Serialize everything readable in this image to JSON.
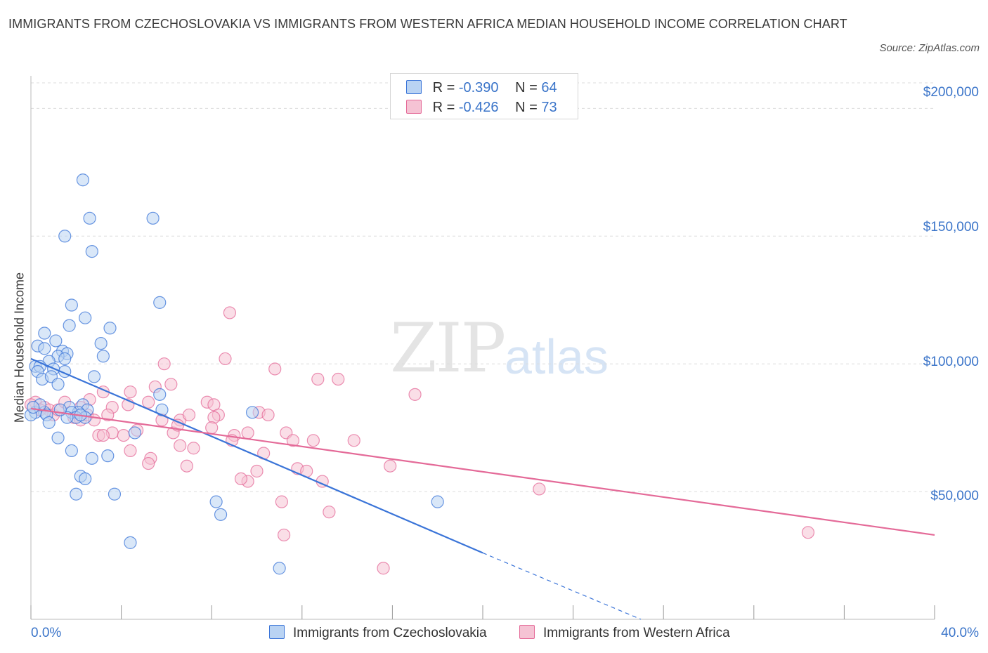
{
  "title": "IMMIGRANTS FROM CZECHOSLOVAKIA VS IMMIGRANTS FROM WESTERN AFRICA MEDIAN HOUSEHOLD INCOME CORRELATION CHART",
  "source": "Source: ZipAtlas.com",
  "watermark": {
    "zip": "ZIP",
    "atlas": "atlas"
  },
  "legend": {
    "rows": [
      {
        "r_label": "R = ",
        "r_value": "-0.390",
        "n_label": "N = ",
        "n_value": "64"
      },
      {
        "r_label": "R = ",
        "r_value": "-0.426",
        "n_label": "N = ",
        "n_value": "73"
      }
    ]
  },
  "colors": {
    "blue": "#3a74d8",
    "blue_fill": "#b9d3f3",
    "pink": "#e46a98",
    "pink_fill": "#f5c3d4",
    "axis_text": "#3a74c9",
    "grid": "#dcdcdc"
  },
  "chart_data": {
    "type": "scatter",
    "title": "IMMIGRANTS FROM CZECHOSLOVAKIA VS IMMIGRANTS FROM WESTERN AFRICA MEDIAN HOUSEHOLD INCOME CORRELATION CHART",
    "xlabel": "",
    "ylabel": "Median Household Income",
    "xlim": [
      0,
      40
    ],
    "ylim": [
      0,
      210000
    ],
    "x_tick_labels": [
      "0.0%",
      "40.0%"
    ],
    "y_ticks": [
      50000,
      100000,
      150000,
      200000
    ],
    "y_tick_labels": [
      "$50,000",
      "$100,000",
      "$150,000",
      "$200,000"
    ],
    "grid": true,
    "legend_position": "top-center",
    "series": [
      {
        "name": "Immigrants from Czechoslovakia",
        "color": "#3a74d8",
        "trend": {
          "x0": 0,
          "y0": 102000,
          "x1": 20,
          "y1": 26000,
          "dashed_to_x": 27,
          "dashed_to_y": 0
        },
        "points": [
          [
            2.3,
            172000
          ],
          [
            2.6,
            157000
          ],
          [
            5.4,
            157000
          ],
          [
            1.5,
            150000
          ],
          [
            2.7,
            144000
          ],
          [
            5.7,
            124000
          ],
          [
            1.8,
            123000
          ],
          [
            2.4,
            118000
          ],
          [
            1.7,
            115000
          ],
          [
            3.5,
            114000
          ],
          [
            0.6,
            112000
          ],
          [
            1.1,
            109000
          ],
          [
            3.1,
            108000
          ],
          [
            0.3,
            107000
          ],
          [
            0.6,
            106000
          ],
          [
            1.4,
            105000
          ],
          [
            1.6,
            104000
          ],
          [
            3.2,
            103000
          ],
          [
            1.2,
            103000
          ],
          [
            1.5,
            102000
          ],
          [
            0.8,
            101000
          ],
          [
            0.2,
            99000
          ],
          [
            0.4,
            99000
          ],
          [
            1.0,
            98000
          ],
          [
            1.5,
            97000
          ],
          [
            0.3,
            97000
          ],
          [
            2.8,
            95000
          ],
          [
            0.5,
            94000
          ],
          [
            0.9,
            95000
          ],
          [
            1.2,
            92000
          ],
          [
            5.7,
            88000
          ],
          [
            2.3,
            84000
          ],
          [
            1.7,
            83000
          ],
          [
            2.5,
            82000
          ],
          [
            5.8,
            82000
          ],
          [
            2.1,
            81000
          ],
          [
            0.6,
            81000
          ],
          [
            1.8,
            81000
          ],
          [
            9.8,
            81000
          ],
          [
            0.2,
            81000
          ],
          [
            2.4,
            79000
          ],
          [
            2.0,
            79000
          ],
          [
            2.2,
            80000
          ],
          [
            1.6,
            79000
          ],
          [
            0.7,
            80000
          ],
          [
            0.0,
            80000
          ],
          [
            0.8,
            77000
          ],
          [
            4.6,
            73000
          ],
          [
            1.2,
            71000
          ],
          [
            1.8,
            66000
          ],
          [
            3.4,
            64000
          ],
          [
            2.7,
            63000
          ],
          [
            2.2,
            56000
          ],
          [
            2.4,
            55000
          ],
          [
            3.7,
            49000
          ],
          [
            2.0,
            49000
          ],
          [
            8.2,
            46000
          ],
          [
            18.0,
            46000
          ],
          [
            8.4,
            41000
          ],
          [
            4.4,
            30000
          ],
          [
            11.0,
            20000
          ],
          [
            1.3,
            82000
          ],
          [
            0.4,
            84000
          ],
          [
            0.1,
            83000
          ]
        ]
      },
      {
        "name": "Immigrants from Western Africa",
        "color": "#e46a98",
        "trend": {
          "x0": 0,
          "y0": 82500,
          "x1": 40,
          "y1": 33000
        },
        "points": [
          [
            0.2,
            85000
          ],
          [
            0.0,
            84000
          ],
          [
            0.6,
            83000
          ],
          [
            0.8,
            82000
          ],
          [
            0.4,
            82000
          ],
          [
            1.0,
            80000
          ],
          [
            1.2,
            82000
          ],
          [
            1.5,
            85000
          ],
          [
            1.9,
            79000
          ],
          [
            2.2,
            78000
          ],
          [
            2.5,
            80000
          ],
          [
            2.2,
            83000
          ],
          [
            2.6,
            86000
          ],
          [
            3.2,
            89000
          ],
          [
            3.6,
            83000
          ],
          [
            4.4,
            89000
          ],
          [
            4.3,
            84000
          ],
          [
            3.4,
            80000
          ],
          [
            2.8,
            78000
          ],
          [
            3.0,
            72000
          ],
          [
            3.6,
            73000
          ],
          [
            3.2,
            72000
          ],
          [
            4.1,
            72000
          ],
          [
            4.7,
            74000
          ],
          [
            5.2,
            85000
          ],
          [
            5.5,
            91000
          ],
          [
            5.9,
            100000
          ],
          [
            6.2,
            92000
          ],
          [
            5.8,
            78000
          ],
          [
            6.3,
            73000
          ],
          [
            6.6,
            78000
          ],
          [
            6.5,
            76000
          ],
          [
            7.0,
            80000
          ],
          [
            7.8,
            85000
          ],
          [
            8.1,
            84000
          ],
          [
            8.3,
            80000
          ],
          [
            8.1,
            79000
          ],
          [
            8.0,
            75000
          ],
          [
            8.6,
            102000
          ],
          [
            8.8,
            120000
          ],
          [
            9.0,
            72000
          ],
          [
            8.9,
            70000
          ],
          [
            9.6,
            73000
          ],
          [
            10.1,
            81000
          ],
          [
            10.5,
            80000
          ],
          [
            10.8,
            98000
          ],
          [
            10.3,
            65000
          ],
          [
            10.0,
            58000
          ],
          [
            9.6,
            54000
          ],
          [
            9.3,
            55000
          ],
          [
            11.3,
            73000
          ],
          [
            11.6,
            70000
          ],
          [
            12.5,
            70000
          ],
          [
            11.8,
            59000
          ],
          [
            12.2,
            58000
          ],
          [
            12.9,
            54000
          ],
          [
            12.7,
            94000
          ],
          [
            13.6,
            94000
          ],
          [
            14.3,
            70000
          ],
          [
            17.0,
            88000
          ],
          [
            15.9,
            60000
          ],
          [
            11.1,
            46000
          ],
          [
            13.2,
            42000
          ],
          [
            11.2,
            33000
          ],
          [
            15.6,
            20000
          ],
          [
            22.5,
            51000
          ],
          [
            34.4,
            34000
          ],
          [
            7.2,
            67000
          ],
          [
            6.6,
            68000
          ],
          [
            5.3,
            63000
          ],
          [
            5.2,
            61000
          ],
          [
            4.4,
            66000
          ],
          [
            6.9,
            60000
          ]
        ]
      }
    ]
  }
}
